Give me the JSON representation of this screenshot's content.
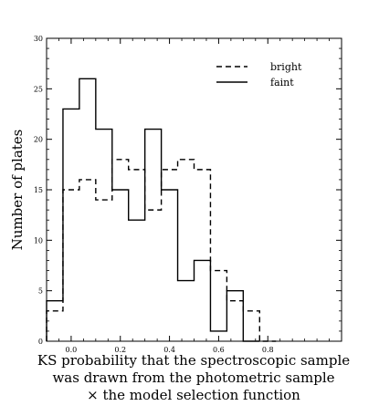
{
  "chart_data": {
    "type": "histogram",
    "xlabel_lines": [
      "KS probability that the spectroscopic sample",
      "was drawn from the photometric sample",
      "× the model selection function"
    ],
    "ylabel": "Number of plates",
    "xlim": [
      -0.1,
      1.1
    ],
    "ylim": [
      0,
      30
    ],
    "xticks": [
      0.0,
      0.2,
      0.4,
      0.6,
      0.8
    ],
    "xtick_labels": [
      "0.0",
      "0.2",
      "0.4",
      "0.6",
      "0.8"
    ],
    "yticks": [
      0,
      5,
      10,
      15,
      20,
      25,
      30
    ],
    "ytick_labels": [
      "0",
      "5",
      "10",
      "15",
      "20",
      "25",
      "30"
    ],
    "grid": false,
    "legend_position": "top-right",
    "series": [
      {
        "name": "bright",
        "linestyle": "dashed",
        "color": "#000000",
        "bin_edges": [
          -0.1,
          -0.0333,
          0.0333,
          0.1,
          0.1667,
          0.2333,
          0.3,
          0.3667,
          0.4333,
          0.5,
          0.5667,
          0.6333,
          0.7,
          0.7667,
          0.8333
        ],
        "counts": [
          3,
          15,
          16,
          14,
          18,
          17,
          13,
          17,
          18,
          17,
          7,
          4,
          3,
          0
        ]
      },
      {
        "name": "faint",
        "linestyle": "solid",
        "color": "#000000",
        "bin_edges": [
          -0.1,
          -0.0333,
          0.0333,
          0.1,
          0.1667,
          0.2333,
          0.3,
          0.3667,
          0.4333,
          0.5,
          0.5667,
          0.6333,
          0.7,
          0.7667
        ],
        "counts": [
          4,
          23,
          26,
          21,
          15,
          12,
          21,
          15,
          6,
          8,
          1,
          5,
          0
        ]
      }
    ]
  }
}
